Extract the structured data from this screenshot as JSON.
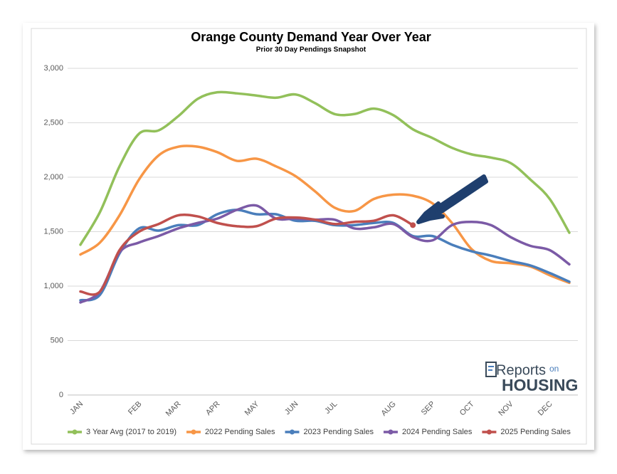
{
  "chart_data": {
    "type": "line",
    "title": "Orange County Demand Year Over Year",
    "subtitle": "Prior 30 Day Pendings Snapshot",
    "categories": [
      "JAN",
      null,
      null,
      "FEB",
      null,
      "MAR",
      null,
      "APR",
      null,
      "MAY",
      null,
      "JUN",
      null,
      "JUL",
      null,
      null,
      "AUG",
      null,
      "SEP",
      null,
      "OCT",
      null,
      "NOV",
      null,
      "DEC",
      null
    ],
    "series": [
      {
        "name": "3 Year Avg (2017 to 2019)",
        "color": "#92c05a",
        "values": [
          1380,
          1680,
          2100,
          2400,
          2430,
          2560,
          2720,
          2780,
          2770,
          2750,
          2730,
          2760,
          2680,
          2580,
          2580,
          2630,
          2570,
          2440,
          2360,
          2270,
          2210,
          2180,
          2130,
          1980,
          1800,
          1490
        ]
      },
      {
        "name": "2022 Pending Sales",
        "color": "#f79646",
        "values": [
          1290,
          1400,
          1650,
          1980,
          2200,
          2280,
          2280,
          2230,
          2150,
          2170,
          2100,
          2010,
          1870,
          1720,
          1690,
          1800,
          1840,
          1830,
          1760,
          1580,
          1340,
          1230,
          1210,
          1180,
          1100,
          1030
        ]
      },
      {
        "name": "2023 Pending Sales",
        "color": "#4a7ebb",
        "values": [
          870,
          920,
          1300,
          1530,
          1510,
          1560,
          1560,
          1660,
          1700,
          1660,
          1660,
          1600,
          1600,
          1560,
          1560,
          1580,
          1580,
          1460,
          1460,
          1380,
          1320,
          1280,
          1230,
          1190,
          1120,
          1040
        ]
      },
      {
        "name": "2024 Pending Sales",
        "color": "#7b5aa6",
        "values": [
          850,
          950,
          1310,
          1400,
          1460,
          1530,
          1580,
          1620,
          1700,
          1740,
          1620,
          1620,
          1610,
          1610,
          1530,
          1540,
          1570,
          1450,
          1420,
          1560,
          1590,
          1560,
          1450,
          1370,
          1330,
          1200
        ]
      },
      {
        "name": "2025 Pending Sales",
        "color": "#c0504d",
        "values": [
          950,
          950,
          1330,
          1500,
          1570,
          1650,
          1640,
          1580,
          1550,
          1550,
          1620,
          1630,
          1610,
          1570,
          1590,
          1600,
          1650,
          1560,
          null,
          null,
          null,
          null,
          null,
          null,
          null,
          null
        ]
      }
    ],
    "ylim": [
      0,
      3000
    ],
    "yticks": [
      0,
      500,
      {
        "value": 1000,
        "label": "1,000"
      },
      {
        "value": 1500,
        "label": "1,500"
      },
      {
        "value": 2000,
        "label": "2,000"
      },
      {
        "value": 2500,
        "label": "2,500"
      },
      {
        "value": 3000,
        "label": "3,000"
      }
    ],
    "grid": true,
    "legend": "bottom"
  },
  "logo": {
    "line1": "Reports",
    "line2": "on",
    "line3": "HOUSING"
  }
}
